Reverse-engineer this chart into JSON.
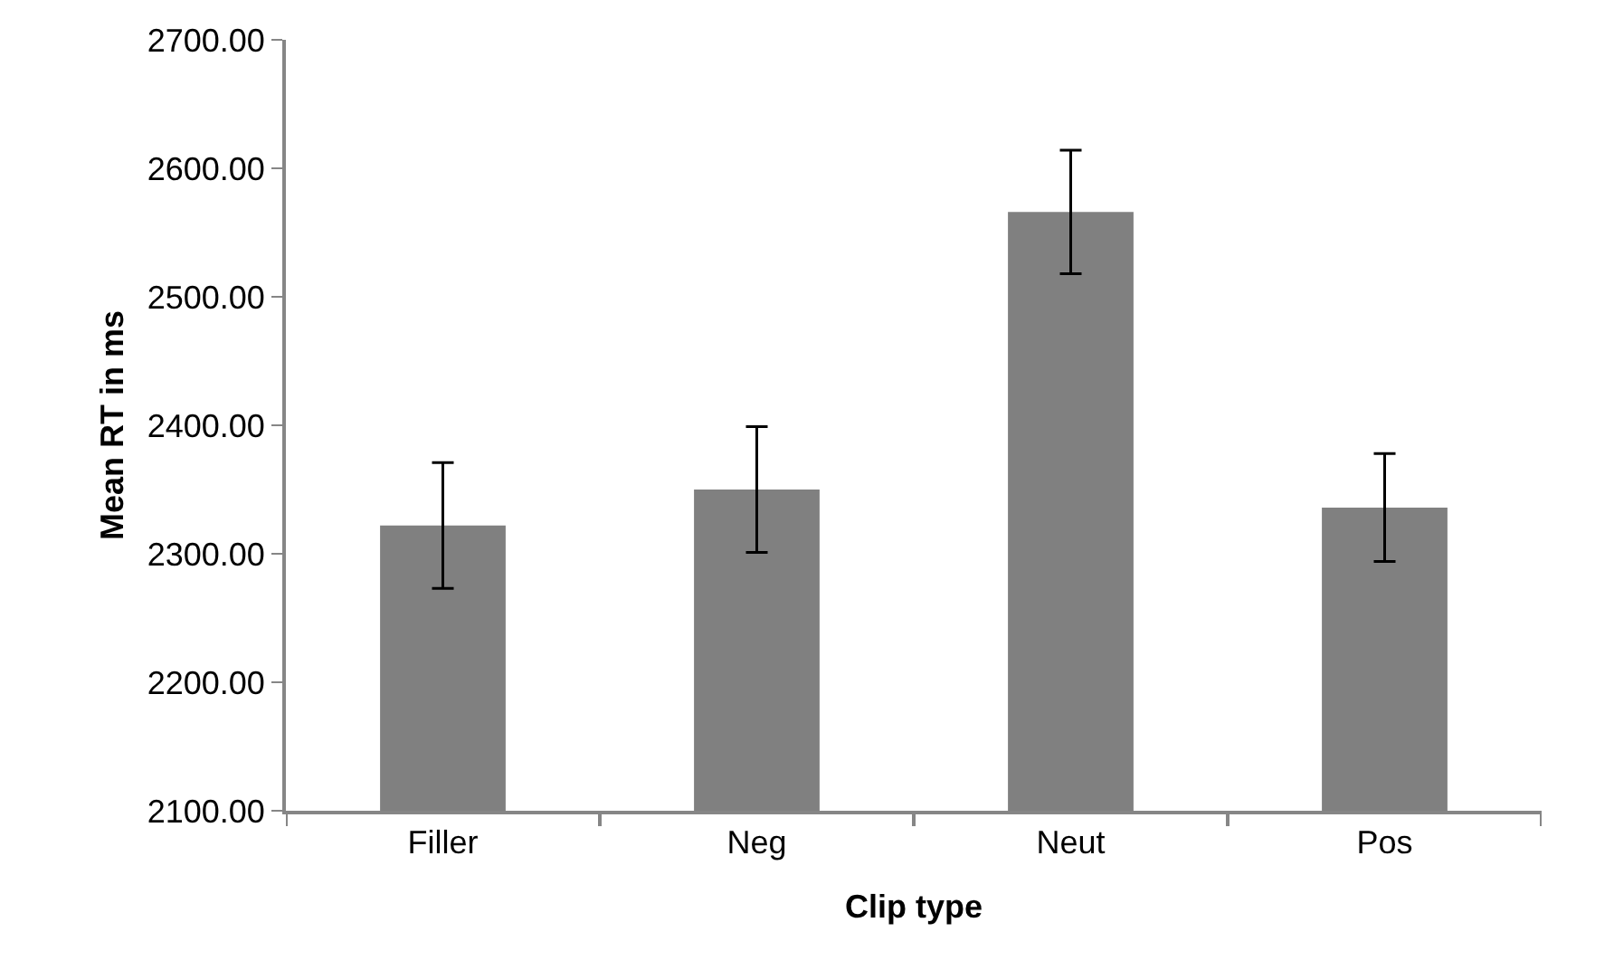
{
  "chart_data": {
    "type": "bar",
    "xlabel": "Clip type",
    "ylabel": "Mean RT in ms",
    "categories": [
      "Filler",
      "Neg",
      "Neut",
      "Pos"
    ],
    "values": [
      2322,
      2350,
      2566,
      2336
    ],
    "errors": [
      49,
      49,
      48,
      42
    ],
    "color": "#808080",
    "ylim": [
      2100,
      2700
    ],
    "yticks": [
      {
        "value": 2100,
        "label": "2100.00"
      },
      {
        "value": 2200,
        "label": "2200.00"
      },
      {
        "value": 2300,
        "label": "2300.00"
      },
      {
        "value": 2400,
        "label": "2400.00"
      },
      {
        "value": 2500,
        "label": "2500.00"
      },
      {
        "value": 2600,
        "label": "2600.00"
      },
      {
        "value": 2700,
        "label": "2700.00"
      }
    ]
  }
}
